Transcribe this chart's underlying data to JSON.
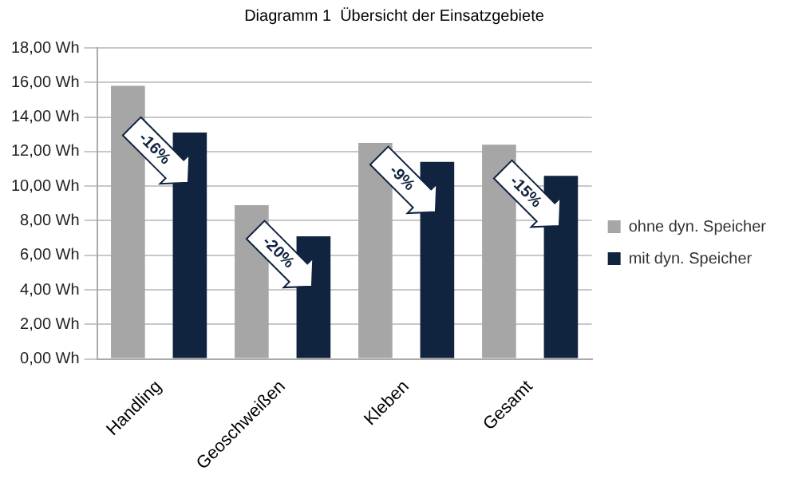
{
  "chart_data": {
    "type": "bar",
    "title": "Diagramm 1  Übersicht der Einsatzgebiete",
    "categories": [
      "Handling",
      "Geoschweißen",
      "Kleben",
      "Gesamt"
    ],
    "series": [
      {
        "name": "ohne dyn. Speicher",
        "color": "#a6a6a6",
        "values": [
          15.8,
          8.9,
          12.5,
          12.4
        ]
      },
      {
        "name": "mit dyn. Speicher",
        "color": "#10233f",
        "values": [
          13.1,
          7.1,
          11.4,
          10.6
        ]
      }
    ],
    "ylim": [
      0,
      18
    ],
    "yticks": [
      {
        "value": 0,
        "label": "0,00 Wh"
      },
      {
        "value": 2,
        "label": "2,00 Wh"
      },
      {
        "value": 4,
        "label": "4,00 Wh"
      },
      {
        "value": 6,
        "label": "6,00 Wh"
      },
      {
        "value": 8,
        "label": "8,00 Wh"
      },
      {
        "value": 10,
        "label": "10,00 Wh"
      },
      {
        "value": 12,
        "label": "12,00 Wh"
      },
      {
        "value": 14,
        "label": "14,00 Wh"
      },
      {
        "value": 16,
        "label": "16,00 Wh"
      },
      {
        "value": 18,
        "label": "18,00 Wh"
      }
    ],
    "annotations": [
      "-16%",
      "-20%",
      "-9%",
      "-15%"
    ],
    "grid": "y",
    "legend": "right"
  }
}
